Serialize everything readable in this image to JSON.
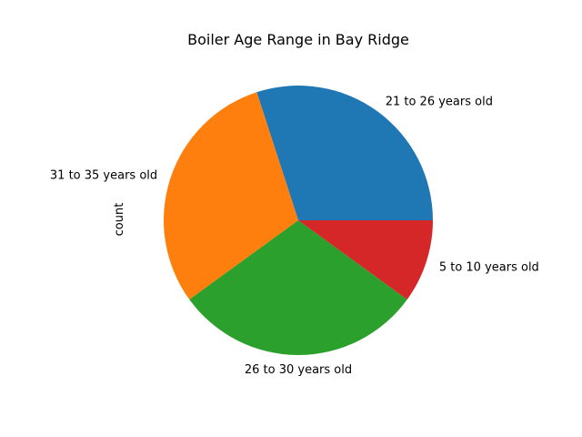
{
  "chart_data": {
    "type": "pie",
    "title": "Boiler Age Range in Bay Ridge",
    "ylabel": "count",
    "categories": [
      "21 to 26 years old",
      "31 to 35 years old",
      "26 to 30 years old",
      "5 to 10 years old"
    ],
    "values": [
      3,
      3,
      3,
      1
    ],
    "colors": [
      "#1f77b4",
      "#ff7f0e",
      "#2ca02c",
      "#d62728"
    ],
    "start_angle_deg": 0,
    "direction": "counterclockwise"
  }
}
